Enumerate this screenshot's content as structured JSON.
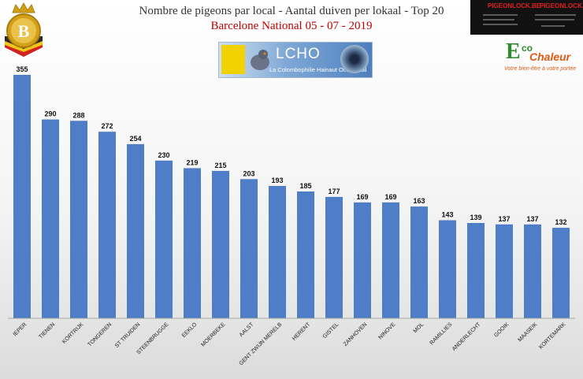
{
  "header": {
    "title": "Nombre de pigeons par local - Aantal duiven per lokaal - Top 20",
    "subtitle": "Barcelone National 05 - 07 - 2019"
  },
  "banner": {
    "text": "LCHO",
    "subtext": "La Colombophilie Hainaut Occidental"
  },
  "ad": {
    "left_title": "PIGEONLOCK.BE",
    "right_title": "PIGEONLOCK.BE"
  },
  "sponsor": {
    "e": "E",
    "co": "co",
    "chaleur": "Chaleur",
    "tagline": "Votre bien-être à votre portée"
  },
  "logo": {
    "letter": "B"
  },
  "colors": {
    "bar": "#4f7ec8",
    "subtitle": "#c00000"
  },
  "chart_data": {
    "type": "bar",
    "categories": [
      "IEPER",
      "TIENEN",
      "KORTRIJK",
      "TONGEREN",
      "ST TRUIDEN",
      "STEENBRUGGE",
      "EEKLO",
      "MOERBEKE",
      "AALST",
      "GENT ZWIJN MERELB",
      "HERENT",
      "GISTEL",
      "ZANHOVEN",
      "NINOVE",
      "MOL",
      "RAMILLIES",
      "ANDERLECHT",
      "GOOIK",
      "MAASEIK",
      "KORTEMARK"
    ],
    "values": [
      355,
      290,
      288,
      272,
      254,
      230,
      219,
      215,
      203,
      193,
      185,
      177,
      169,
      169,
      163,
      143,
      139,
      137,
      137,
      132
    ],
    "ylim": [
      0,
      400
    ],
    "grid": false,
    "legend": "none"
  }
}
